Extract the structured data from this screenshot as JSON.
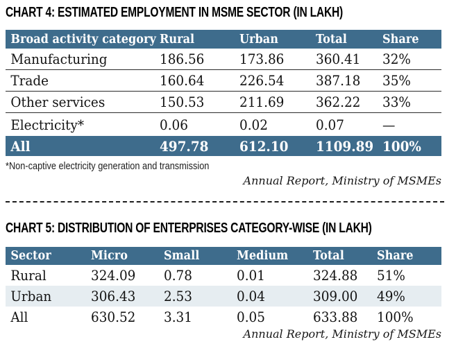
{
  "colors": {
    "header_bg": "#3e6c8c",
    "total_row_bg": "#3e6c8c",
    "stripe_row_bg": "#e6edf1",
    "separator": "#2a2a2a"
  },
  "chart_data": [
    {
      "type": "table",
      "title": "CHART 4: ESTIMATED EMPLOYMENT IN MSME SECTOR (IN LAKH)",
      "columns": [
        "Broad activity category",
        "Rural",
        "Urban",
        "Total",
        "Share"
      ],
      "rows": [
        [
          "Manufacturing",
          "186.56",
          "173.86",
          "360.41",
          "32%"
        ],
        [
          "Trade",
          "160.64",
          "226.54",
          "387.18",
          "35%"
        ],
        [
          "Other services",
          "150.53",
          "211.69",
          "362.22",
          "33%"
        ],
        [
          "Electricity*",
          "0.06",
          "0.02",
          "0.07",
          "—"
        ],
        [
          "All",
          "497.78",
          "612.10",
          "1109.89",
          "100%"
        ]
      ],
      "footnote": "*Non-captive electricity generation and transmission",
      "source": "Annual Report, Ministry of MSMEs"
    },
    {
      "type": "table",
      "title": "CHART 5: DISTRIBUTION OF ENTERPRISES CATEGORY-WISE (IN LAKH)",
      "columns": [
        "Sector",
        "Micro",
        "Small",
        "Medium",
        "Total",
        "Share"
      ],
      "rows": [
        [
          "Rural",
          "324.09",
          "0.78",
          "0.01",
          "324.88",
          "51%"
        ],
        [
          "Urban",
          "306.43",
          "2.53",
          "0.04",
          "309.00",
          "49%"
        ],
        [
          "All",
          "630.52",
          "3.31",
          "0.05",
          "633.88",
          "100%"
        ]
      ],
      "source": "Annual Report, Ministry of MSMEs"
    }
  ]
}
